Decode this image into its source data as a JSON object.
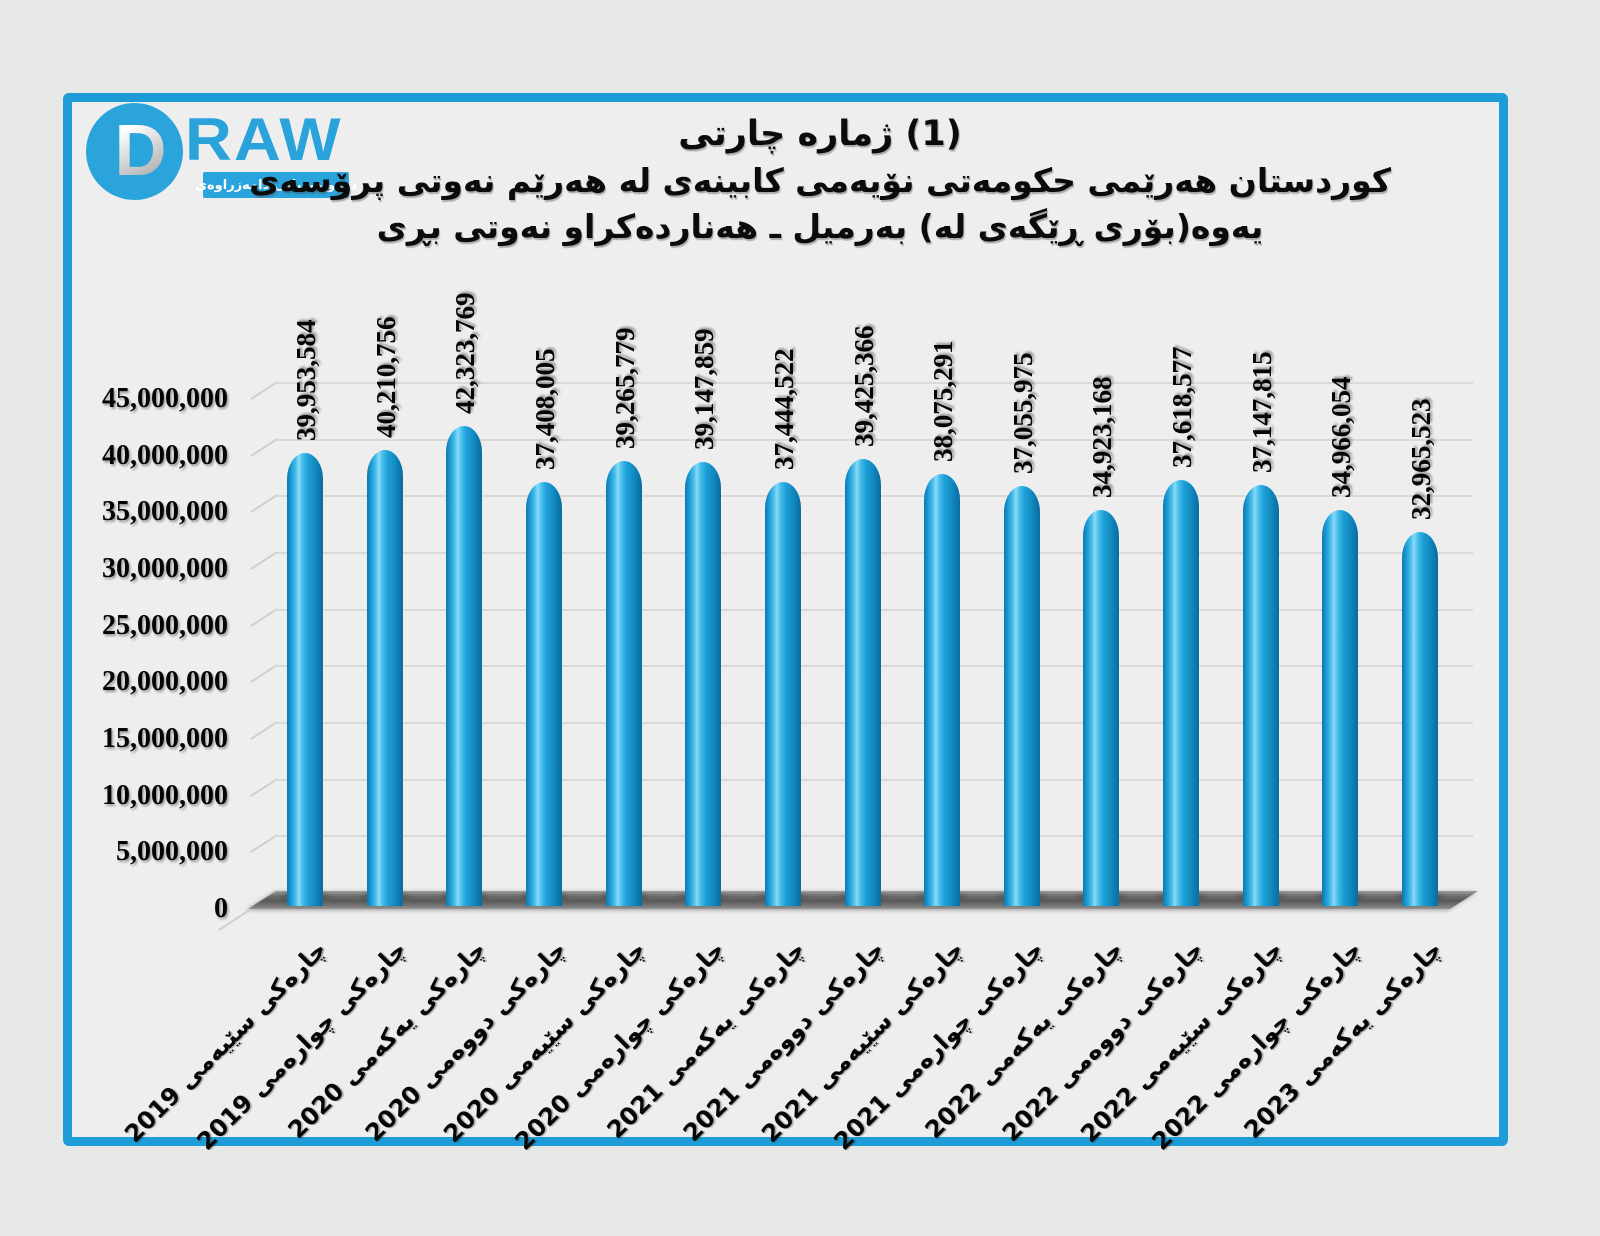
{
  "brand": {
    "d_letter": "D",
    "raw_text": "RAW",
    "tagline": "دامەزراوەی‎ میدیایی‎ درەو"
  },
  "chart_data": {
    "type": "bar",
    "title_lines": [
      "چارتی‎ ژماره‎ (1)",
      "پرۆسەی‎ نەوتی‎ هەرێم‎ لە‎ کابینەی‎ نۆیەمی‎ حکومەتی‎ هەرێمی‎ کوردستان",
      "بڕی‎ نەوتی‎ هەناردەکراو‎ ـ‎ بەرمیل‎ (لە‎ ڕێگەی‎ بۆری‎)‎یەوە"
    ],
    "categories": [
      "چارەکی سێیەمی 2019",
      "چارەکی چوارەمی 2019",
      "چارەکی یەکەمی 2020",
      "چارەکی دووەمی 2020",
      "چارەکی سێیەمی 2020",
      "چارەکی چوارەمی 2020",
      "چارەکی یەکەمی 2021",
      "چارەکی دووەمی 2021",
      "چارەکی سێیەمی 2021",
      "چارەکی چوارەمی 2021",
      "چارەکی یەکەمی 2022",
      "چارەکی دووەمی 2022",
      "چارەکی سێیەمی 2022",
      "چارەکی چوارەمی 2022",
      "چارەکی یەکەمی 2023"
    ],
    "values": [
      39953584,
      40210756,
      42323769,
      37408005,
      39265779,
      39147859,
      37444522,
      39425366,
      38075291,
      37055975,
      34923168,
      37618577,
      37147815,
      34966054,
      32965523
    ],
    "value_labels": [
      "39,953,584",
      "40,210,756",
      "42,323,769",
      "37,408,005",
      "39,265,779",
      "39,147,859",
      "37,444,522",
      "39,425,366",
      "38,075,291",
      "37,055,975",
      "34,923,168",
      "37,618,577",
      "37,147,815",
      "34,966,054",
      "32,965,523"
    ],
    "y_tick_labels": [
      "0",
      "5,000,000",
      "10,000,000",
      "15,000,000",
      "20,000,000",
      "25,000,000",
      "30,000,000",
      "35,000,000",
      "40,000,000",
      "45,000,000"
    ],
    "ylim": [
      0,
      45000000
    ],
    "y_tick_step": 5000000,
    "grid": true,
    "legend": false,
    "bar_color": "#1b9fd9",
    "gridline_color": "#d9d9d9",
    "floor_color": "#6a6a6a",
    "frame_color": "#1e9cd7",
    "background_color": "#eeeeee"
  }
}
